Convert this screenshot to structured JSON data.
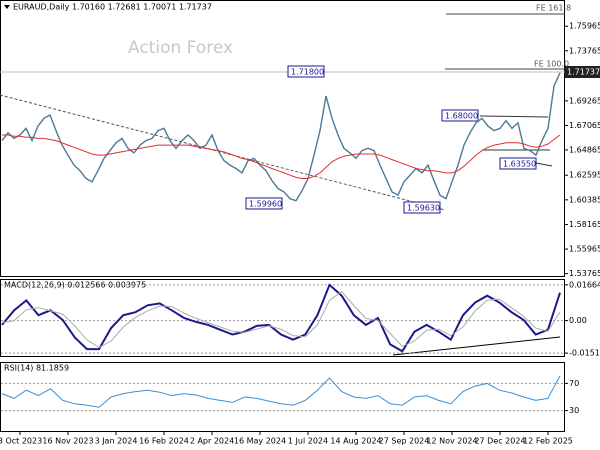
{
  "chart_data": [
    {
      "type": "line",
      "title": "EURAUD,Daily  1.70160 1.72681 1.70071 1.71737",
      "watermark": "Action Forex",
      "annotations": [
        "1.71800",
        "1.68000",
        "1.63550",
        "1.59960",
        "1.59630",
        "FE 161.8",
        "FE 100.0",
        "1.71737"
      ],
      "categories": [
        null,
        null,
        null,
        "3 Oct 2023",
        null,
        null,
        null,
        null,
        null,
        null,
        null,
        "16 Nov 2023",
        null,
        null,
        null,
        null,
        null,
        null,
        null,
        "3 Jan 2024",
        null,
        null,
        null,
        null,
        null,
        null,
        null,
        "16 Feb 2024",
        null,
        null,
        null,
        null,
        null,
        null,
        null,
        "2 Apr 2024",
        null,
        null,
        null,
        null,
        null,
        null,
        null,
        "16 May 2024",
        null,
        null,
        null,
        null,
        null,
        null,
        null,
        "1 Jul 2024",
        null,
        null,
        null,
        null,
        null,
        null,
        null,
        "14 Aug 2024",
        null,
        null,
        null,
        null,
        null,
        null,
        null,
        "27 Sep 2024",
        null,
        null,
        null,
        null,
        null,
        null,
        null,
        "12 Nov 2024",
        null,
        null,
        null,
        null,
        null,
        null,
        null,
        "27 Dec 2024",
        null,
        null,
        null,
        null,
        null,
        null,
        null,
        "12 Feb 2025",
        null,
        null
      ],
      "series": [
        {
          "color": "#4a7a94",
          "values": [
            1.657,
            1.664,
            1.659,
            1.662,
            1.668,
            1.657,
            1.67,
            1.677,
            1.68,
            1.666,
            1.653,
            1.644,
            1.635,
            1.63,
            1.623,
            1.62,
            1.63,
            1.641,
            1.648,
            1.655,
            1.659,
            1.65,
            1.646,
            1.653,
            1.657,
            1.659,
            1.666,
            1.668,
            1.657,
            1.65,
            1.657,
            1.662,
            1.657,
            1.65,
            1.653,
            1.662,
            1.648,
            1.639,
            1.635,
            1.632,
            1.628,
            1.639,
            1.641,
            1.635,
            1.63,
            1.621,
            1.614,
            1.611,
            1.605,
            1.603,
            1.612,
            1.623,
            1.644,
            1.666,
            1.697,
            1.677,
            1.662,
            1.65,
            1.646,
            1.641,
            1.648,
            1.65,
            1.648,
            1.635,
            1.623,
            1.611,
            1.608,
            1.62,
            1.626,
            1.632,
            1.628,
            1.635,
            1.621,
            1.608,
            1.605,
            1.62,
            1.635,
            1.653,
            1.664,
            1.673,
            1.677,
            1.67,
            1.666,
            1.668,
            1.675,
            1.668,
            1.673,
            1.65,
            1.648,
            1.644,
            1.657,
            1.668,
            1.706,
            1.7179
          ]
        },
        {
          "color": "#e03030",
          "values": [
            1.662,
            1.662,
            1.661,
            1.661,
            1.66,
            1.66,
            1.659,
            1.659,
            1.658,
            1.657,
            1.655,
            1.653,
            1.651,
            1.649,
            1.647,
            1.645,
            1.644,
            1.644,
            1.645,
            1.646,
            1.647,
            1.648,
            1.649,
            1.65,
            1.651,
            1.652,
            1.653,
            1.653,
            1.653,
            1.653,
            1.653,
            1.653,
            1.652,
            1.651,
            1.65,
            1.649,
            1.648,
            1.647,
            1.645,
            1.643,
            1.641,
            1.64,
            1.638,
            1.636,
            1.634,
            1.632,
            1.63,
            1.628,
            1.626,
            1.624,
            1.623,
            1.623,
            1.625,
            1.628,
            1.633,
            1.638,
            1.641,
            1.643,
            1.644,
            1.645,
            1.645,
            1.645,
            1.645,
            1.644,
            1.642,
            1.64,
            1.638,
            1.636,
            1.634,
            1.632,
            1.631,
            1.63,
            1.63,
            1.629,
            1.628,
            1.628,
            1.63,
            1.634,
            1.639,
            1.644,
            1.648,
            1.651,
            1.653,
            1.654,
            1.655,
            1.655,
            1.655,
            1.654,
            1.652,
            1.651,
            1.652,
            1.654,
            1.658,
            1.662
          ]
        }
      ],
      "ylim": [
        1.5355,
        1.7823
      ],
      "yticks": [
        1.75965,
        1.73765,
        1.69265,
        1.67065,
        1.64865,
        1.62595,
        1.60385,
        1.58165,
        1.55965,
        1.53765
      ]
    },
    {
      "type": "line",
      "title": "MACD(12,26,9) 0.012566 0.003975",
      "series": [
        {
          "color": "#1a1a8c",
          "values": [
            -0.002,
            0.0048,
            0.0094,
            0.0025,
            0.0048,
            0.0003,
            -0.0079,
            -0.0133,
            -0.0133,
            -0.0034,
            0.0025,
            0.0039,
            0.0071,
            0.008,
            0.0048,
            0.0012,
            -0.0006,
            -0.002,
            -0.0043,
            -0.0065,
            -0.0052,
            -0.0025,
            -0.002,
            -0.0065,
            -0.0089,
            -0.0065,
            0.0025,
            0.0166,
            0.0116,
            0.0025,
            -0.002,
            0.0012,
            -0.0111,
            -0.0143,
            -0.0052,
            -0.002,
            -0.0052,
            -0.0089,
            0.0025,
            0.0084,
            0.0116,
            0.0084,
            0.0039,
            0.0003,
            -0.0065,
            -0.0043,
            0.013
          ]
        },
        {
          "color": "#aaaaaa",
          "values": [
            -0.001,
            0.0,
            0.005,
            0.006,
            0.0045,
            0.003,
            -0.0025,
            -0.009,
            -0.0125,
            -0.0095,
            -0.003,
            0.0015,
            0.0045,
            0.0068,
            0.0065,
            0.0035,
            0.001,
            -0.001,
            -0.003,
            -0.005,
            -0.0055,
            -0.004,
            -0.0025,
            -0.004,
            -0.007,
            -0.0075,
            -0.002,
            0.0095,
            0.0135,
            0.007,
            0.001,
            0.0,
            -0.006,
            -0.012,
            -0.0095,
            -0.0045,
            -0.004,
            -0.007,
            -0.003,
            0.0045,
            0.0095,
            0.01,
            0.006,
            0.002,
            -0.0035,
            -0.005,
            0.004
          ]
        }
      ],
      "ylim": [
        -0.0165,
        0.0189
      ],
      "yticks": [
        0.01664,
        {
          "value": 0,
          "label": "0.00"
        },
        -0.01515
      ]
    },
    {
      "type": "line",
      "title": "RSI(14) 81.1859",
      "series": [
        {
          "color": "#3a8fd8",
          "values": [
            55,
            48,
            60,
            52,
            62,
            45,
            40,
            38,
            35,
            50,
            55,
            58,
            60,
            57,
            52,
            55,
            53,
            48,
            45,
            42,
            50,
            48,
            44,
            40,
            38,
            45,
            60,
            78,
            58,
            50,
            48,
            52,
            40,
            38,
            50,
            52,
            45,
            40,
            58,
            66,
            70,
            60,
            56,
            50,
            45,
            48,
            81.1859
          ]
        }
      ],
      "ylim": [
        0,
        100
      ],
      "yticks": [
        70,
        30
      ]
    }
  ]
}
